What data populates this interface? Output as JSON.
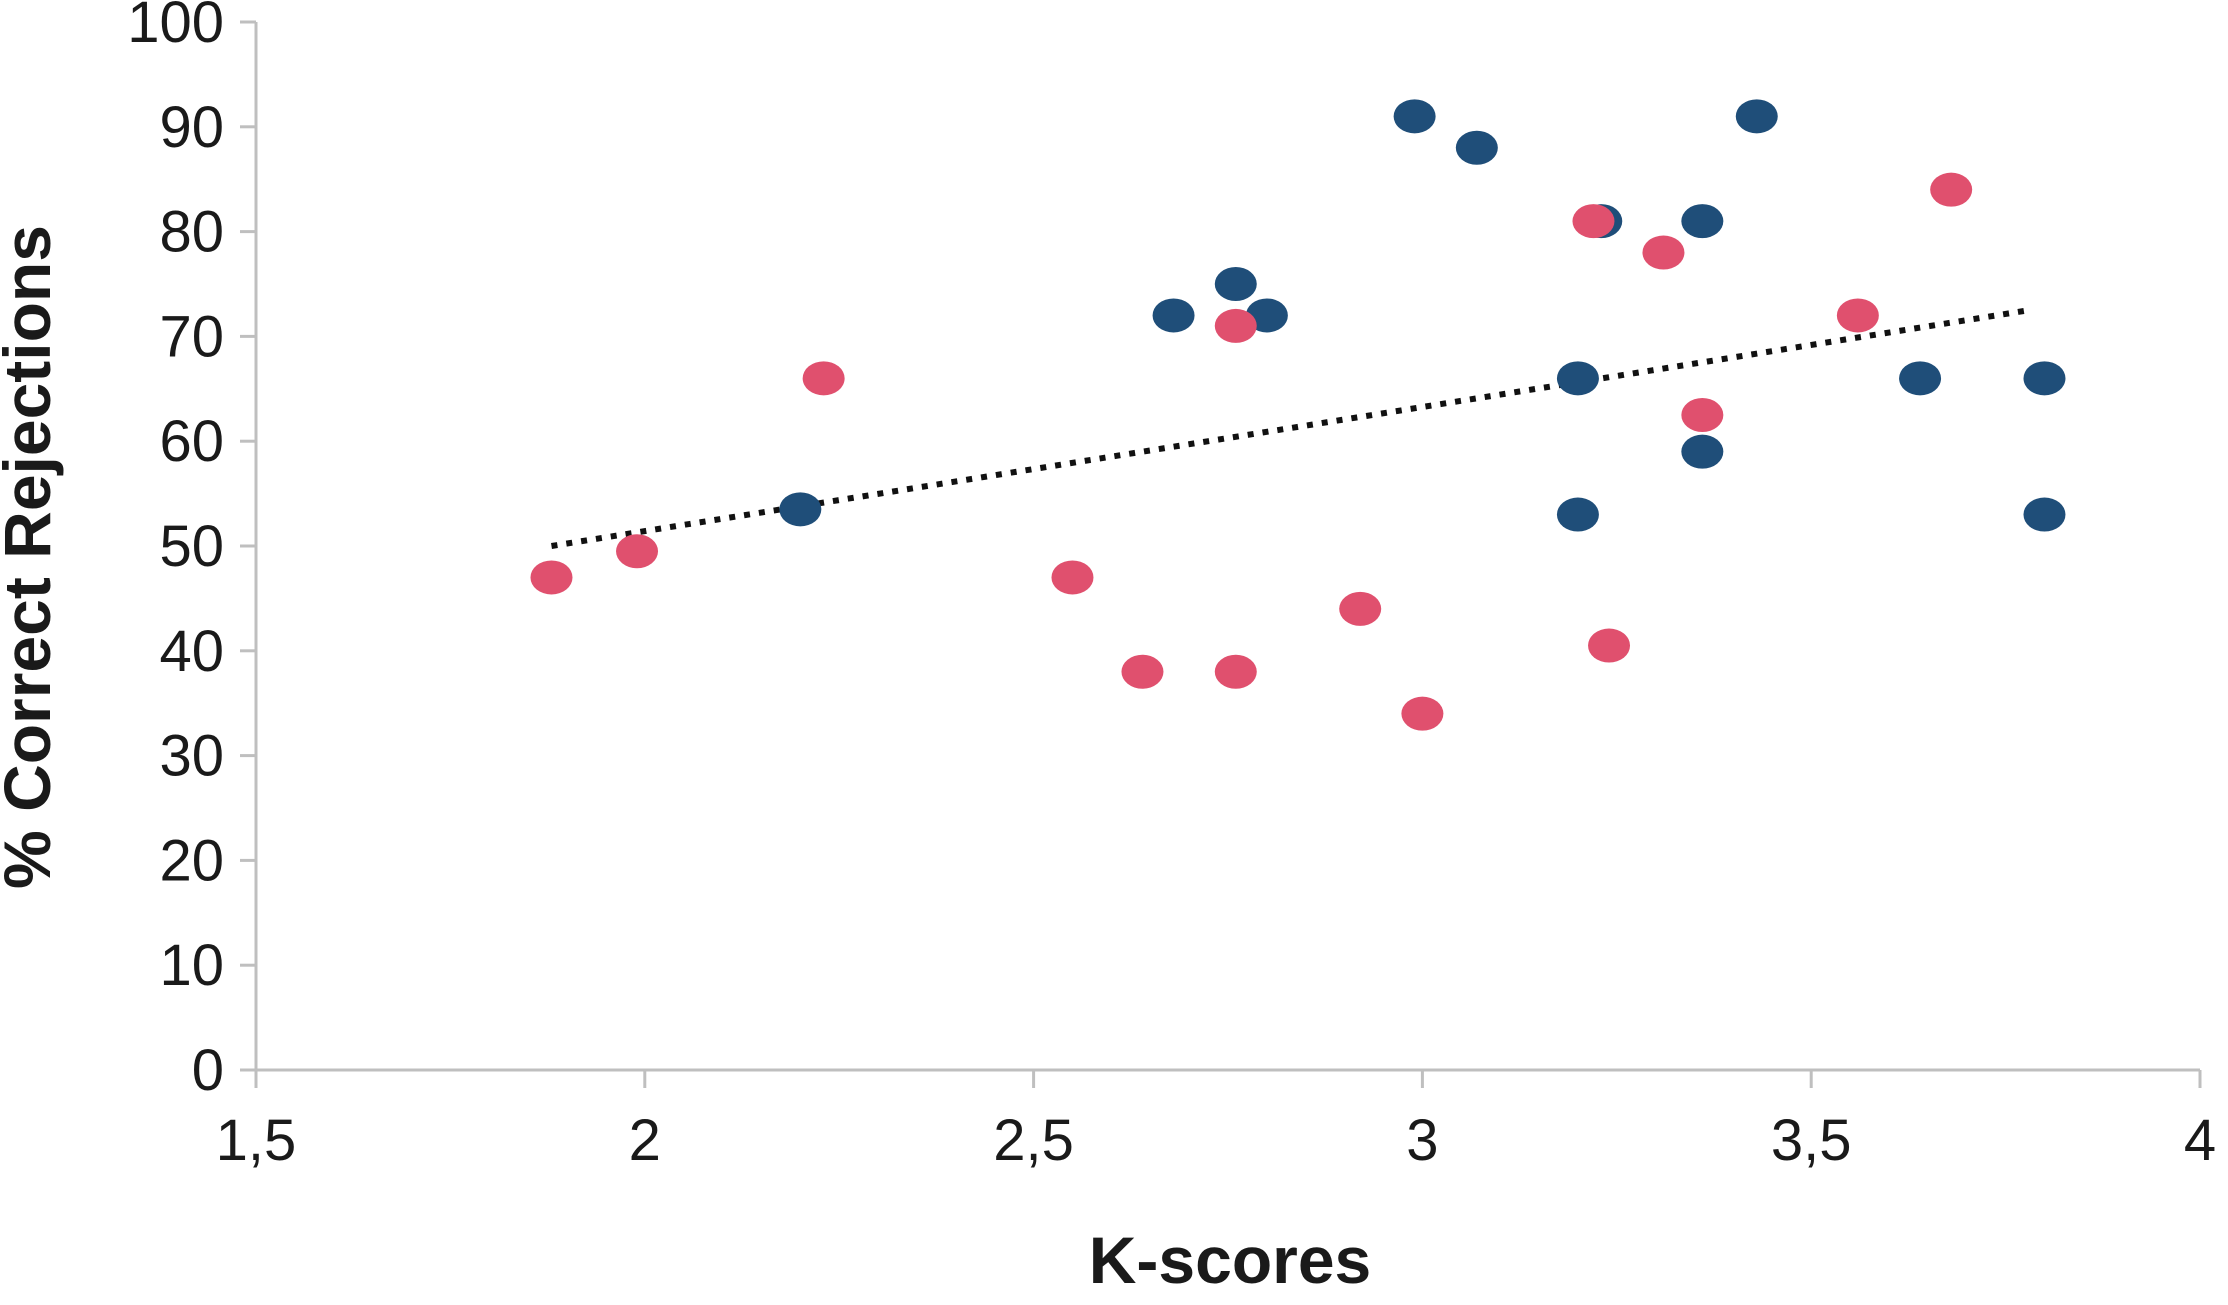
{
  "chart_data": {
    "type": "scatter",
    "xlabel": "K-scores",
    "ylabel": "% Correct Rejections",
    "xlim": [
      1.5,
      4
    ],
    "ylim": [
      0,
      100
    ],
    "x_ticks": [
      "1,5",
      "2",
      "2,5",
      "3",
      "3,5",
      "4"
    ],
    "x_tick_values": [
      1.5,
      2,
      2.5,
      3,
      3.5,
      4
    ],
    "y_ticks": [
      "0",
      "10",
      "20",
      "30",
      "40",
      "50",
      "60",
      "70",
      "80",
      "90",
      "100"
    ],
    "y_tick_values": [
      0,
      10,
      20,
      30,
      40,
      50,
      60,
      70,
      80,
      90,
      100
    ],
    "grid": false,
    "legend": "none",
    "series": [
      {
        "color": "#1f4e79",
        "points": [
          [
            2.2,
            53.5
          ],
          [
            2.68,
            72
          ],
          [
            2.76,
            75
          ],
          [
            2.8,
            72
          ],
          [
            2.99,
            91
          ],
          [
            3.07,
            88
          ],
          [
            3.2,
            66
          ],
          [
            3.2,
            53
          ],
          [
            3.23,
            81
          ],
          [
            3.36,
            81
          ],
          [
            3.36,
            59
          ],
          [
            3.43,
            91
          ],
          [
            3.64,
            66
          ],
          [
            3.8,
            66
          ],
          [
            3.8,
            53
          ]
        ]
      },
      {
        "color": "#e0506e",
        "points": [
          [
            1.88,
            47
          ],
          [
            1.99,
            49.5
          ],
          [
            2.23,
            66
          ],
          [
            2.55,
            47
          ],
          [
            2.64,
            38
          ],
          [
            2.76,
            38
          ],
          [
            2.76,
            71
          ],
          [
            2.92,
            44
          ],
          [
            3.0,
            34
          ],
          [
            3.22,
            81
          ],
          [
            3.24,
            40.5
          ],
          [
            3.31,
            78
          ],
          [
            3.36,
            62.5
          ],
          [
            3.56,
            72
          ],
          [
            3.68,
            84
          ]
        ]
      }
    ],
    "trendline": {
      "style": "dotted",
      "color": "#111111",
      "x": [
        1.88,
        3.78
      ],
      "y": [
        50,
        72.5
      ]
    }
  }
}
